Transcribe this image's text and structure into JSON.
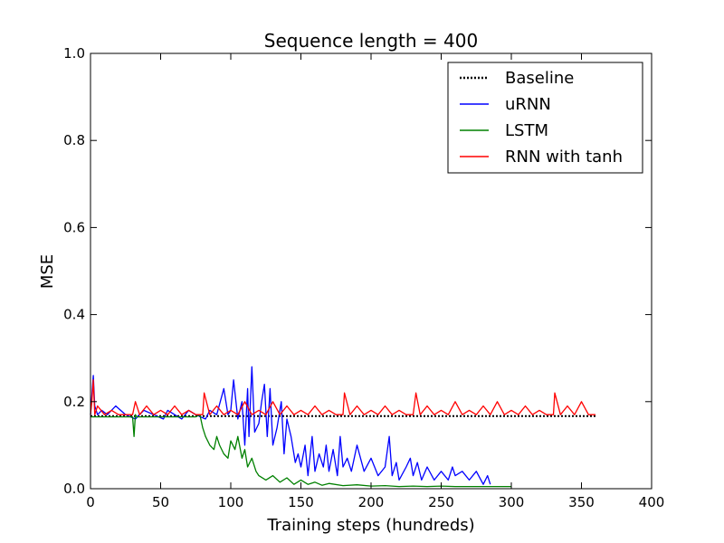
{
  "chart_data": {
    "type": "line",
    "title": "Sequence length = 400",
    "xlabel": "Training steps (hundreds)",
    "ylabel": "MSE",
    "xlim": [
      0,
      400
    ],
    "ylim": [
      0.0,
      1.0
    ],
    "xticks": [
      "0",
      "50",
      "100",
      "150",
      "200",
      "250",
      "300",
      "350",
      "400"
    ],
    "yticks": [
      "0.0",
      "0.2",
      "0.4",
      "0.6",
      "0.8",
      "1.0"
    ],
    "grid": false,
    "legend_position": "top-right",
    "series": [
      {
        "name": "Baseline",
        "color": "#000000",
        "style": "dotted",
        "x": [
          0,
          360
        ],
        "y": [
          0.167,
          0.167
        ]
      },
      {
        "name": "uRNN",
        "color": "#0000ff",
        "style": "solid",
        "x": [
          0,
          2,
          3,
          5,
          8,
          12,
          18,
          25,
          32,
          38,
          45,
          52,
          55,
          60,
          65,
          70,
          75,
          82,
          85,
          90,
          95,
          98,
          100,
          102,
          105,
          108,
          110,
          112,
          113,
          115,
          117,
          120,
          122,
          124,
          126,
          128,
          130,
          133,
          136,
          138,
          140,
          143,
          146,
          148,
          150,
          153,
          155,
          158,
          160,
          163,
          166,
          168,
          170,
          173,
          176,
          178,
          180,
          183,
          186,
          190,
          195,
          200,
          205,
          210,
          213,
          215,
          218,
          220,
          225,
          228,
          230,
          233,
          236,
          240,
          245,
          250,
          255,
          258,
          260,
          265,
          270,
          275,
          280,
          283,
          285
        ],
        "y": [
          0.17,
          0.26,
          0.19,
          0.17,
          0.18,
          0.17,
          0.19,
          0.17,
          0.16,
          0.18,
          0.17,
          0.16,
          0.18,
          0.17,
          0.16,
          0.18,
          0.17,
          0.16,
          0.18,
          0.17,
          0.23,
          0.17,
          0.18,
          0.25,
          0.16,
          0.2,
          0.1,
          0.23,
          0.12,
          0.28,
          0.13,
          0.15,
          0.2,
          0.24,
          0.12,
          0.23,
          0.1,
          0.14,
          0.2,
          0.08,
          0.16,
          0.12,
          0.06,
          0.08,
          0.05,
          0.1,
          0.03,
          0.12,
          0.04,
          0.08,
          0.05,
          0.1,
          0.04,
          0.09,
          0.03,
          0.12,
          0.05,
          0.07,
          0.04,
          0.1,
          0.04,
          0.07,
          0.03,
          0.05,
          0.12,
          0.03,
          0.06,
          0.02,
          0.05,
          0.07,
          0.03,
          0.06,
          0.02,
          0.05,
          0.02,
          0.04,
          0.02,
          0.05,
          0.03,
          0.04,
          0.02,
          0.04,
          0.01,
          0.03,
          0.01
        ]
      },
      {
        "name": "LSTM",
        "color": "#008000",
        "style": "solid",
        "x": [
          0,
          5,
          10,
          15,
          20,
          25,
          30,
          31,
          32,
          33,
          35,
          40,
          50,
          60,
          70,
          75,
          78,
          80,
          82,
          85,
          88,
          90,
          92,
          95,
          98,
          100,
          103,
          105,
          108,
          110,
          112,
          115,
          118,
          120,
          125,
          130,
          135,
          140,
          145,
          150,
          155,
          160,
          165,
          170,
          180,
          190,
          200,
          210,
          220,
          230,
          240,
          250,
          260,
          270,
          280,
          290,
          300
        ],
        "y": [
          0.165,
          0.165,
          0.165,
          0.165,
          0.165,
          0.165,
          0.165,
          0.12,
          0.17,
          0.165,
          0.165,
          0.165,
          0.165,
          0.165,
          0.165,
          0.165,
          0.17,
          0.14,
          0.12,
          0.1,
          0.09,
          0.12,
          0.1,
          0.08,
          0.07,
          0.11,
          0.09,
          0.12,
          0.07,
          0.09,
          0.05,
          0.07,
          0.04,
          0.03,
          0.02,
          0.03,
          0.015,
          0.025,
          0.01,
          0.02,
          0.01,
          0.015,
          0.008,
          0.012,
          0.007,
          0.009,
          0.006,
          0.007,
          0.005,
          0.006,
          0.005,
          0.006,
          0.005,
          0.005,
          0.005,
          0.005,
          0.005
        ]
      },
      {
        "name": "RNN with tanh",
        "color": "#ff0000",
        "style": "solid",
        "x": [
          0,
          1,
          2,
          3,
          5,
          10,
          15,
          20,
          25,
          30,
          32,
          35,
          40,
          45,
          50,
          55,
          60,
          65,
          70,
          75,
          80,
          81,
          85,
          90,
          95,
          100,
          105,
          110,
          115,
          120,
          125,
          130,
          135,
          140,
          145,
          150,
          155,
          160,
          165,
          170,
          175,
          180,
          181,
          185,
          190,
          195,
          200,
          205,
          210,
          215,
          220,
          225,
          230,
          232,
          235,
          240,
          245,
          250,
          255,
          260,
          265,
          270,
          275,
          280,
          285,
          290,
          295,
          300,
          305,
          310,
          315,
          320,
          325,
          330,
          331,
          335,
          340,
          345,
          350,
          355,
          360
        ],
        "y": [
          0.17,
          0.2,
          0.25,
          0.17,
          0.19,
          0.17,
          0.18,
          0.17,
          0.17,
          0.17,
          0.2,
          0.17,
          0.19,
          0.17,
          0.18,
          0.17,
          0.19,
          0.17,
          0.18,
          0.17,
          0.17,
          0.22,
          0.17,
          0.19,
          0.17,
          0.18,
          0.17,
          0.2,
          0.17,
          0.18,
          0.17,
          0.2,
          0.17,
          0.19,
          0.17,
          0.18,
          0.17,
          0.19,
          0.17,
          0.18,
          0.17,
          0.17,
          0.22,
          0.17,
          0.19,
          0.17,
          0.18,
          0.17,
          0.19,
          0.17,
          0.18,
          0.17,
          0.17,
          0.22,
          0.17,
          0.19,
          0.17,
          0.18,
          0.17,
          0.2,
          0.17,
          0.18,
          0.17,
          0.19,
          0.17,
          0.2,
          0.17,
          0.18,
          0.17,
          0.19,
          0.17,
          0.18,
          0.17,
          0.17,
          0.22,
          0.17,
          0.19,
          0.17,
          0.2,
          0.17,
          0.17
        ]
      }
    ]
  }
}
